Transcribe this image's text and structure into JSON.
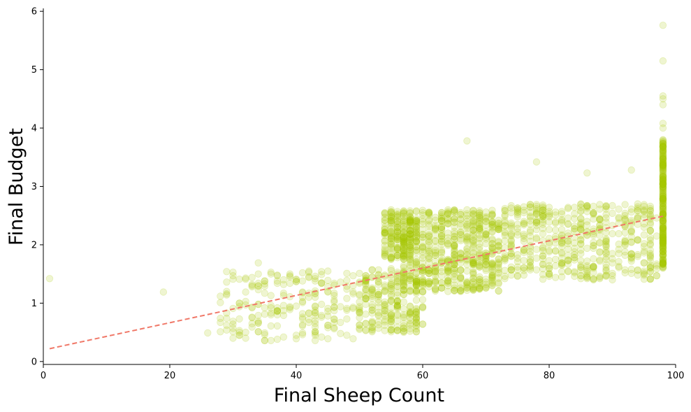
{
  "chart_data": {
    "type": "scatter",
    "title": "",
    "xlabel": "Final Sheep Count",
    "ylabel": "Final Budget",
    "xlim": [
      0,
      100
    ],
    "ylim": [
      -0.05,
      6.05
    ],
    "xticks": [
      0,
      20,
      40,
      60,
      80,
      100
    ],
    "yticks": [
      0,
      1,
      2,
      3,
      4,
      5,
      6
    ],
    "grid": false,
    "legend": "none",
    "point_color": "#a8c800",
    "point_alpha": 0.18,
    "trend_line": {
      "style": "dashed",
      "color": "#f07868",
      "from": [
        1,
        0.22
      ],
      "to": [
        98,
        2.49
      ]
    },
    "clusters": [
      {
        "x_range": [
          28,
          50
        ],
        "y_range": [
          0.35,
          1.55
        ],
        "note": "sparse lower-left cluster"
      },
      {
        "x_range": [
          50,
          60
        ],
        "y_range": [
          0.5,
          1.6
        ],
        "note": "dense low band"
      },
      {
        "x_range": [
          54,
          58
        ],
        "y_range": [
          1.75,
          2.6
        ],
        "note": "dense upper band"
      },
      {
        "x_range": [
          57,
          72
        ],
        "y_range": [
          1.2,
          2.6
        ],
        "note": "dense main mass"
      },
      {
        "x_range": [
          72,
          97
        ],
        "y_range": [
          1.4,
          2.7
        ],
        "note": "wide right band"
      },
      {
        "x_range": [
          97.5,
          98.5
        ],
        "y_range": [
          1.6,
          3.8
        ],
        "note": "vertical column at 98"
      }
    ],
    "outliers": [
      {
        "x": 1,
        "y": 1.42
      },
      {
        "x": 19,
        "y": 1.19
      },
      {
        "x": 26,
        "y": 0.49
      },
      {
        "x": 34,
        "y": 1.69
      },
      {
        "x": 67,
        "y": 3.78
      },
      {
        "x": 78,
        "y": 3.42
      },
      {
        "x": 86,
        "y": 3.23
      },
      {
        "x": 93,
        "y": 3.28
      },
      {
        "x": 98,
        "y": 5.76
      },
      {
        "x": 98,
        "y": 5.15
      },
      {
        "x": 98,
        "y": 4.55
      },
      {
        "x": 98,
        "y": 4.5
      },
      {
        "x": 98,
        "y": 4.4
      },
      {
        "x": 98,
        "y": 4.08
      },
      {
        "x": 98,
        "y": 4.0
      }
    ]
  }
}
